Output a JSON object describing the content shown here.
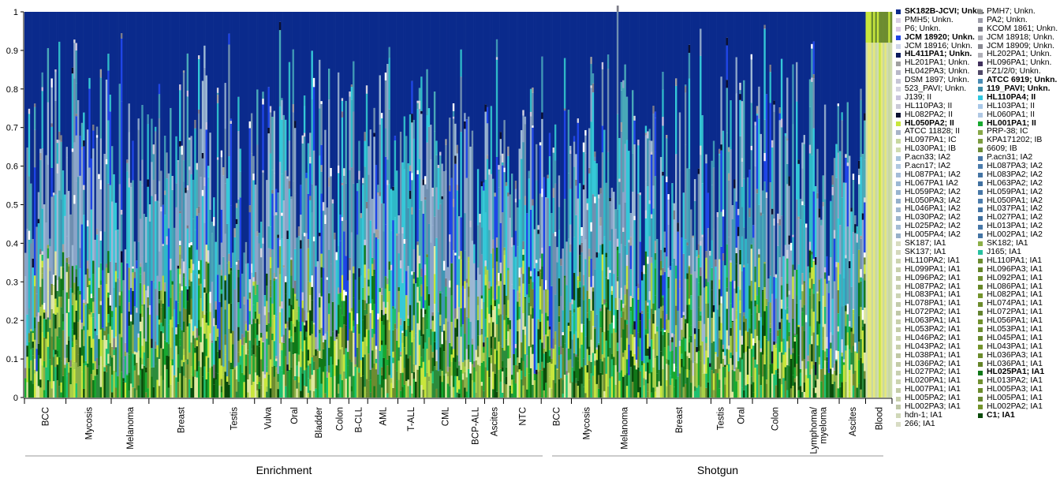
{
  "chart_data": {
    "type": "stacked-bar",
    "ylim": [
      0,
      1
    ],
    "yticks": [
      "0",
      "0.1",
      "0.2",
      "0.3",
      "0.4",
      "0.5",
      "0.6",
      "0.7",
      "0.8",
      "0.9",
      "1"
    ],
    "group_labels": [
      {
        "name": "Enrichment",
        "span": [
          0,
          16
        ]
      },
      {
        "name": "Shotgun",
        "span": [
          17,
          27
        ]
      }
    ],
    "categories": [
      {
        "name": "BCC",
        "n": 22
      },
      {
        "name": "Mycosis",
        "n": 24
      },
      {
        "name": "Melanoma",
        "n": 20
      },
      {
        "name": "Breast",
        "n": 34
      },
      {
        "name": "Testis",
        "n": 22
      },
      {
        "name": "Vulva",
        "n": 14
      },
      {
        "name": "Oral",
        "n": 14
      },
      {
        "name": "Bladder",
        "n": 12
      },
      {
        "name": "Colon",
        "n": 10
      },
      {
        "name": "B-CLL",
        "n": 10
      },
      {
        "name": "AML",
        "n": 16
      },
      {
        "name": "T-ALL",
        "n": 14
      },
      {
        "name": "CML",
        "n": 22
      },
      {
        "name": "BCP-ALL",
        "n": 10
      },
      {
        "name": "Ascites",
        "n": 10
      },
      {
        "name": "NTC",
        "n": 20
      },
      {
        "name": "BCC",
        "n": 16
      },
      {
        "name": "Mycosis",
        "n": 16
      },
      {
        "name": "Melanoma",
        "n": 24
      },
      {
        "name": "Breast",
        "n": 34
      },
      {
        "name": "Testis",
        "n": 10
      },
      {
        "name": "Oral",
        "n": 12
      },
      {
        "name": "Colon",
        "n": 24
      },
      {
        "name": "Lymphoma/ myeloma",
        "n": 22
      },
      {
        "name": "Ascites",
        "n": 14
      },
      {
        "name": "Blood",
        "n": 14
      }
    ],
    "legend_col1": [
      {
        "label": "SK182B-JCVI; Unkn.",
        "color": "#0b2a8c",
        "bold": true
      },
      {
        "label": "PMH5;  Unkn.",
        "color": "#d9d0e6",
        "bold": false
      },
      {
        "label": "P6;  Unkn.",
        "color": "#d8c9e6",
        "bold": false
      },
      {
        "label": "JCM 18920; Unkn.",
        "color": "#1f45e6",
        "bold": true
      },
      {
        "label": "JCM 18916; Unkn.",
        "color": "#cfd6ea",
        "bold": false
      },
      {
        "label": "HL411PA1; Unkn.",
        "color": "#0a1a5c",
        "bold": true
      },
      {
        "label": "HL201PA1; Unkn.",
        "color": "#a0a0a0",
        "bold": false
      },
      {
        "label": "HL042PA3; Unkn.",
        "color": "#b8b8c8",
        "bold": false
      },
      {
        "label": "DSM 1897; Unkn.",
        "color": "#c6c6d6",
        "bold": false
      },
      {
        "label": "523_PAVI; Unkn.",
        "color": "#d4d4e0",
        "bold": false
      },
      {
        "label": "J139;   II",
        "color": "#c8c4dc",
        "bold": false
      },
      {
        "label": "HL110PA3; II",
        "color": "#cacad6",
        "bold": false
      },
      {
        "label": "HL082PA2; II",
        "color": "#0a1030",
        "bold": false
      },
      {
        "label": "HL050PA2; II",
        "color": "#c8e63c",
        "bold": true
      },
      {
        "label": "ATCC 11828; II",
        "color": "#a8b4c8",
        "bold": false
      },
      {
        "label": "HL097PA1; IC",
        "color": "#c8d8a0",
        "bold": false
      },
      {
        "label": "HL030PA1;  IB",
        "color": "#d0dcb0",
        "bold": false
      },
      {
        "label": "P.acn33;  IA2",
        "color": "#a8c4dc",
        "bold": false
      },
      {
        "label": "P.acn17;  IA2",
        "color": "#b0c8e0",
        "bold": false
      },
      {
        "label": "HL087PA1; IA2",
        "color": "#a4bcd8",
        "bold": false
      },
      {
        "label": "HL067PA1 IA2",
        "color": "#9cb8d4",
        "bold": false
      },
      {
        "label": "HL059PA2; IA2",
        "color": "#98b4d0",
        "bold": false
      },
      {
        "label": "HL050PA3; IA2",
        "color": "#94b0cc",
        "bold": false
      },
      {
        "label": "HL046PA1; IA2",
        "color": "#a0b8d0",
        "bold": false
      },
      {
        "label": "HL030PA2; IA2",
        "color": "#9cb4cc",
        "bold": false
      },
      {
        "label": "HL025PA2; IA2",
        "color": "#a4bcd4",
        "bold": false
      },
      {
        "label": "HL005PA4; IA2",
        "color": "#98b0c8",
        "bold": false
      },
      {
        "label": "SK187;  IA1",
        "color": "#d8dcc0",
        "bold": false
      },
      {
        "label": "SK137;  IA1",
        "color": "#d4d8bc",
        "bold": false
      },
      {
        "label": "HL110PA2; IA1",
        "color": "#ccd4b0",
        "bold": false
      },
      {
        "label": "HL099PA1; IA1",
        "color": "#c8d0ac",
        "bold": false
      },
      {
        "label": "HL096PA2; IA1",
        "color": "#c4cca8",
        "bold": false
      },
      {
        "label": "HL087PA2; IA1",
        "color": "#c8d0b0",
        "bold": false
      },
      {
        "label": "HL083PA1; IA1",
        "color": "#ccd4b4",
        "bold": false
      },
      {
        "label": "HL078PA1; IA1",
        "color": "#c4ccac",
        "bold": false
      },
      {
        "label": "HL072PA2; IA1",
        "color": "#c0c8a8",
        "bold": false
      },
      {
        "label": "HL063PA1; IA1",
        "color": "#c8d0ac",
        "bold": false
      },
      {
        "label": "HL053PA2; IA1",
        "color": "#c4cca8",
        "bold": false
      },
      {
        "label": "HL046PA2; IA1",
        "color": "#ccd4b0",
        "bold": false
      },
      {
        "label": "HL043PA2; IA1",
        "color": "#c8d0ac",
        "bold": false
      },
      {
        "label": "HL038PA1; IA1",
        "color": "#c0c8a4",
        "bold": false
      },
      {
        "label": "HL036PA2; IA1",
        "color": "#c4cca8",
        "bold": false
      },
      {
        "label": "HL027PA2; IA1",
        "color": "#c8d0b0",
        "bold": false
      },
      {
        "label": "HL020PA1; IA1",
        "color": "#ccd4b0",
        "bold": false
      },
      {
        "label": "HL007PA1; IA1",
        "color": "#c4cca8",
        "bold": false
      },
      {
        "label": "HL005PA2; IA1",
        "color": "#c8d0ac",
        "bold": false
      },
      {
        "label": "HL002PA3; IA1",
        "color": "#c0c8a8",
        "bold": false
      },
      {
        "label": "hdn-1;  IA1",
        "color": "#d0d8b8",
        "bold": false
      },
      {
        "label": "266;  IA1",
        "color": "#d8dcc4",
        "bold": false
      }
    ],
    "legend_col2": [
      {
        "label": "PMH7;   Unkn.",
        "color": "#909090",
        "bold": false
      },
      {
        "label": "PA2;  Unkn.",
        "color": "#9c9ca8",
        "bold": false
      },
      {
        "label": "KCOM 1861; Unkn.",
        "color": "#7c7c88",
        "bold": false
      },
      {
        "label": "JCM 18918; Unkn.",
        "color": "#a8a8b0",
        "bold": false
      },
      {
        "label": "JCM 18909; Unkn.",
        "color": "#888890",
        "bold": false
      },
      {
        "label": "HL202PA1; Unkn.",
        "color": "#b0b0b8",
        "bold": false
      },
      {
        "label": "HL096PA1; Unkn.",
        "color": "#40305c",
        "bold": false
      },
      {
        "label": "FZ1/2/0; Unkn.",
        "color": "#504868",
        "bold": false
      },
      {
        "label": "ATCC 6919; Unkn.",
        "color": "#4a8cb4",
        "bold": true
      },
      {
        "label": "119_PAVI; Unkn.",
        "color": "#3c8ca8",
        "bold": true
      },
      {
        "label": "HL110PA4; II",
        "color": "#30c8e0",
        "bold": true
      },
      {
        "label": "HL103PA1; II",
        "color": "#a8c8e8",
        "bold": false
      },
      {
        "label": "HL060PA1; II",
        "color": "#b0c8e4",
        "bold": false
      },
      {
        "label": "HL001PA1; II",
        "color": "#18a830",
        "bold": true
      },
      {
        "label": "PRP-38;  IC",
        "color": "#88a848",
        "bold": false
      },
      {
        "label": "KPA171202; IB",
        "color": "#7c9c40",
        "bold": false
      },
      {
        "label": "6609;  IB",
        "color": "#6c8c38",
        "bold": false
      },
      {
        "label": "P.acn31;  IA2",
        "color": "#4878a8",
        "bold": false
      },
      {
        "label": "HL087PA3; IA2",
        "color": "#4c7cac",
        "bold": false
      },
      {
        "label": "HL083PA2; IA2",
        "color": "#4474a4",
        "bold": false
      },
      {
        "label": "HL063PA2; IA2",
        "color": "#4070a0",
        "bold": false
      },
      {
        "label": "HL059PA1; IA2",
        "color": "#4878a8",
        "bold": false
      },
      {
        "label": "HL050PA1; IA2",
        "color": "#4c7cac",
        "bold": false
      },
      {
        "label": "HL037PA1; IA2",
        "color": "#4474a4",
        "bold": false
      },
      {
        "label": "HL027PA1; IA2",
        "color": "#4070a0",
        "bold": false
      },
      {
        "label": "HL013PA1; IA2",
        "color": "#4878a8",
        "bold": false
      },
      {
        "label": "HL002PA1; IA2",
        "color": "#4474a4",
        "bold": false
      },
      {
        "label": "SK182;  IA1",
        "color": "#8cb048",
        "bold": false
      },
      {
        "label": "J165;  IA1",
        "color": "#28c0a0",
        "bold": false
      },
      {
        "label": "HL110PA1; IA1",
        "color": "#6c8c30",
        "bold": false
      },
      {
        "label": "HL096PA3; IA1",
        "color": "#648428",
        "bold": false
      },
      {
        "label": "HL092PA1; IA1",
        "color": "#709030",
        "bold": false
      },
      {
        "label": "HL086PA1; IA1",
        "color": "#688828",
        "bold": false
      },
      {
        "label": "HL082PA1; IA1",
        "color": "#74942c",
        "bold": false
      },
      {
        "label": "HL074PA1; IA1",
        "color": "#6c8c2c",
        "bold": false
      },
      {
        "label": "HL072PA1; IA1",
        "color": "#648430",
        "bold": false
      },
      {
        "label": "HL056PA1; IA1",
        "color": "#70902c",
        "bold": false
      },
      {
        "label": "HL053PA1; IA1",
        "color": "#6c8c30",
        "bold": false
      },
      {
        "label": "HL045PA1; IA1",
        "color": "#688830",
        "bold": false
      },
      {
        "label": "HL043PA1; IA1",
        "color": "#74942c",
        "bold": false
      },
      {
        "label": "HL036PA3; IA1",
        "color": "#6c8c2c",
        "bold": false
      },
      {
        "label": "HL036PA1; IA1",
        "color": "#648428",
        "bold": false
      },
      {
        "label": "HL025PA1; IA1",
        "color": "#107818",
        "bold": true
      },
      {
        "label": "HL013PA2; IA1",
        "color": "#709030",
        "bold": false
      },
      {
        "label": "HL005PA3; IA1",
        "color": "#6c8c2c",
        "bold": false
      },
      {
        "label": "HL005PA1; IA1",
        "color": "#688830",
        "bold": false
      },
      {
        "label": "HL002PA2; IA1",
        "color": "#74942c",
        "bold": false
      },
      {
        "label": "C1;   IA1",
        "color": "#0a4a0a",
        "bold": true
      }
    ],
    "palette": {
      "top": "#0a2a8c",
      "mid": [
        "#1f45e6",
        "#3f96b4",
        "#49a8b8",
        "#2fb8c8",
        "#35c8d8",
        "#8aa4c8",
        "#9cb8d4",
        "#6f8fb0"
      ],
      "low": [
        "#c8e63c",
        "#8cb048",
        "#18a830",
        "#107818",
        "#0a4a0a",
        "#6c8c30",
        "#a8d048",
        "#dfe8a0",
        "#2c8c3c",
        "#1ec070"
      ],
      "sprinkle": [
        "#ffffff",
        "#d4d4e0",
        "#a0a0a0",
        "#7c7c88",
        "#c8c4dc",
        "#0a1030"
      ]
    }
  }
}
